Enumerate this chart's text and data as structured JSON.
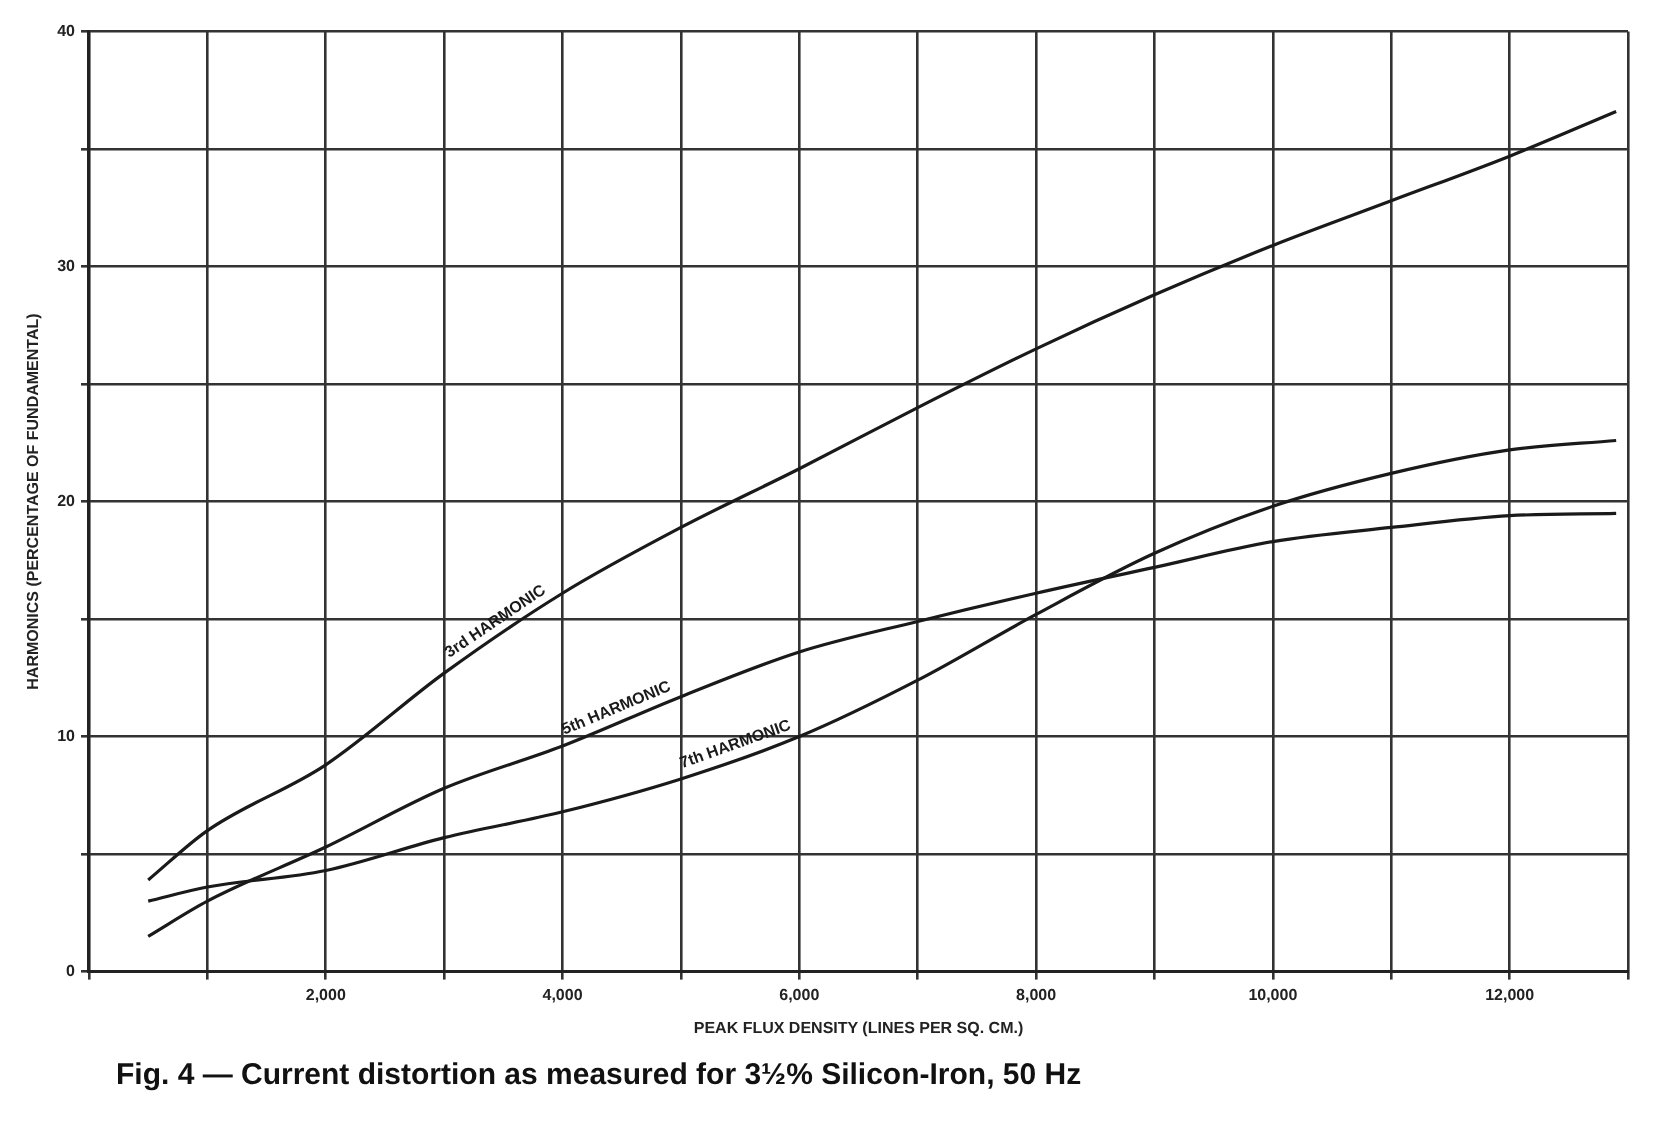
{
  "chart_data": {
    "type": "line",
    "title": "Fig. 4 — Current distortion as measured for 3½% Silicon-Iron, 50 Hz",
    "xlabel": "PEAK FLUX DENSITY (LINES PER SQ. CM.)",
    "ylabel": "HARMONICS (PERCENTAGE OF FUNDAMENTAL)",
    "xlim": [
      0,
      13000
    ],
    "xticks": [
      {
        "value": 0,
        "label": null
      },
      {
        "value": 1000,
        "label": null
      },
      {
        "value": 2000,
        "label": "2,000"
      },
      {
        "value": 3000,
        "label": null
      },
      {
        "value": 4000,
        "label": "4,000"
      },
      {
        "value": 5000,
        "label": null
      },
      {
        "value": 6000,
        "label": "6,000"
      },
      {
        "value": 7000,
        "label": null
      },
      {
        "value": 8000,
        "label": "8,000"
      },
      {
        "value": 9000,
        "label": null
      },
      {
        "value": 10000,
        "label": "10,000"
      },
      {
        "value": 11000,
        "label": null
      },
      {
        "value": 12000,
        "label": "12,000"
      },
      {
        "value": 13000,
        "label": null
      }
    ],
    "ylim": [
      0,
      40
    ],
    "yticks": [
      0,
      {
        "value": 5,
        "label": null
      },
      10,
      {
        "value": 15,
        "label": null
      },
      20,
      {
        "value": 25,
        "label": null
      },
      30,
      {
        "value": 35,
        "label": null
      },
      40
    ],
    "grid": true,
    "legend": false,
    "marker": "none",
    "line_style": "solid",
    "series": [
      {
        "name": "3rd HARMONIC",
        "color": "#1a1a1a",
        "x": [
          500,
          1000,
          2000,
          3000,
          4000,
          5000,
          6000,
          7000,
          8000,
          9000,
          10000,
          11000,
          12000,
          12900
        ],
        "values": [
          3.9,
          6.0,
          8.8,
          12.7,
          16.1,
          18.9,
          21.4,
          24.0,
          26.5,
          28.8,
          30.9,
          32.8,
          34.7,
          36.6
        ]
      },
      {
        "name": "5th HARMONIC",
        "color": "#1a1a1a",
        "x": [
          500,
          1000,
          2000,
          3000,
          4000,
          5000,
          6000,
          7000,
          8000,
          9000,
          10000,
          11000,
          12000,
          12900
        ],
        "values": [
          1.5,
          3.0,
          5.3,
          7.8,
          9.6,
          11.7,
          13.6,
          14.9,
          16.1,
          17.2,
          18.3,
          18.9,
          19.4,
          19.5
        ]
      },
      {
        "name": "7th HARMONIC",
        "color": "#1a1a1a",
        "x": [
          500,
          1000,
          2000,
          3000,
          4000,
          5000,
          6000,
          7000,
          8000,
          9000,
          10000,
          11000,
          12000,
          12900
        ],
        "values": [
          3.0,
          3.6,
          4.3,
          5.7,
          6.8,
          8.2,
          10.0,
          12.4,
          15.2,
          17.8,
          19.8,
          21.2,
          22.2,
          22.6
        ]
      }
    ]
  }
}
